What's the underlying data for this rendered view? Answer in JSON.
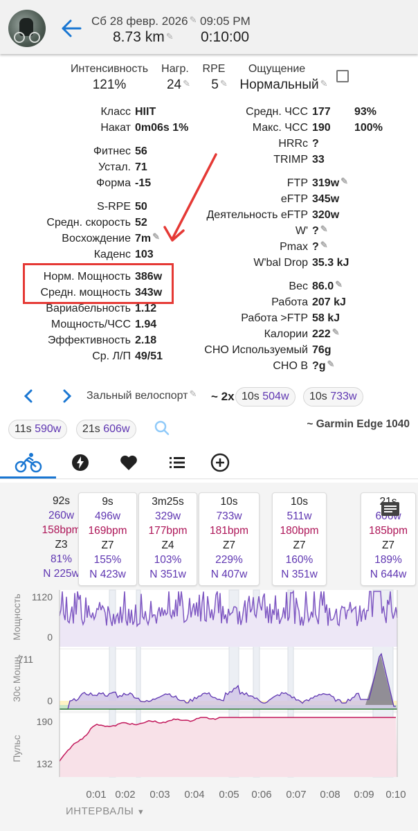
{
  "header": {
    "date": "Сб 28 февр. 2026",
    "time": "09:05 PM",
    "distance": "8.73 km",
    "duration": "0:10:00"
  },
  "top_metrics": [
    {
      "label": "Интенсивность",
      "value": "121%"
    },
    {
      "label": "Нагр.",
      "value": "24"
    },
    {
      "label": "RPE",
      "value": "5"
    },
    {
      "label": "Ощущение",
      "value": "Нормальный"
    }
  ],
  "left_stats": [
    {
      "label": "Класс",
      "value": "HIIT"
    },
    {
      "label": "Накат",
      "value": "0m06s 1%"
    },
    {
      "label": "Фитнес",
      "value": "56"
    },
    {
      "label": "Устал.",
      "value": "71"
    },
    {
      "label": "Форма",
      "value": "-15"
    },
    {
      "label": "S-RPE",
      "value": "50"
    },
    {
      "label": "Средн. скорость",
      "value": "52"
    },
    {
      "label": "Восхождение",
      "value": "7m"
    },
    {
      "label": "Каденс",
      "value": "103"
    },
    {
      "label": "Норм. Мощность",
      "value": "386w"
    },
    {
      "label": "Средн. мощность",
      "value": "343w"
    },
    {
      "label": "Вариабельность",
      "value": "1.12"
    },
    {
      "label": "Мощность/ЧСС",
      "value": "1.94"
    },
    {
      "label": "Эффективность",
      "value": "2.18"
    },
    {
      "label": "Ср. Л/П",
      "value": "49/51"
    }
  ],
  "right_stats": [
    {
      "label": "Средн. ЧСС",
      "value": "177",
      "extra": "93%"
    },
    {
      "label": "Макс. ЧСС",
      "value": "190",
      "extra": "100%"
    },
    {
      "label": "HRRc",
      "value": "?"
    },
    {
      "label": "TRIMP",
      "value": "33"
    },
    {
      "label": "FTP",
      "value": "319w"
    },
    {
      "label": "eFTP",
      "value": "345w"
    },
    {
      "label": "Деятельность eFTP",
      "value": "320w"
    },
    {
      "label": "W'",
      "value": "?"
    },
    {
      "label": "Pmax",
      "value": "?"
    },
    {
      "label": "W'bal Drop",
      "value": "35.3 kJ"
    },
    {
      "label": "Вес",
      "value": "86.0"
    },
    {
      "label": "Работа",
      "value": "207 kJ"
    },
    {
      "label": "Работа >FTP",
      "value": "58 kJ"
    },
    {
      "label": "Калории",
      "value": "222"
    },
    {
      "label": "CHO Используемый",
      "value": "76g"
    },
    {
      "label": "CHO В",
      "value": "?g"
    }
  ],
  "activity": {
    "type": "Зальный велоспорт",
    "multiplier": "~ 2x",
    "device": "~ Garmin Edge 1040"
  },
  "peak_chips": [
    {
      "dur": "10s",
      "watts": "504w"
    },
    {
      "dur": "10s",
      "watts": "733w"
    },
    {
      "dur": "11s",
      "watts": "590w"
    },
    {
      "dur": "21s",
      "watts": "606w"
    }
  ],
  "tabs": [
    {
      "name": "tab-ride",
      "icon": "bike-icon"
    },
    {
      "name": "tab-power",
      "icon": "lightning-icon"
    },
    {
      "name": "tab-heart",
      "icon": "heart-icon"
    },
    {
      "name": "tab-list",
      "icon": "list-icon"
    },
    {
      "name": "tab-add",
      "icon": "plus-circle-icon"
    }
  ],
  "intervals": [
    {
      "dur": "92s",
      "power": "260w",
      "hr": "158bpm",
      "zone": "Z3",
      "pct": "81%",
      "np": "N 225w"
    },
    {
      "dur": "9s",
      "power": "496w",
      "hr": "169bpm",
      "zone": "Z7",
      "pct": "155%",
      "np": "N 423w"
    },
    {
      "dur": "3m25s",
      "power": "329w",
      "hr": "177bpm",
      "zone": "Z4",
      "pct": "103%",
      "np": "N 351w"
    },
    {
      "dur": "10s",
      "power": "733w",
      "hr": "181bpm",
      "zone": "Z7",
      "pct": "229%",
      "np": "N 407w"
    },
    {
      "dur": "10s",
      "power": "511w",
      "hr": "180bpm",
      "zone": "Z7",
      "pct": "160%",
      "np": "N 351w"
    },
    {
      "dur": "21s",
      "power": "606w",
      "hr": "185bpm",
      "zone": "Z7",
      "pct": "189%",
      "np": "N 644w"
    }
  ],
  "charts": {
    "power_label": "Мощность",
    "power_max": "1120",
    "power_min": "0",
    "power30_label": "30с Мощн.",
    "power30_max": "711",
    "power30_min": "0",
    "hr_label": "Пульс",
    "hr_max": "190",
    "hr_min": "132",
    "x_ticks": [
      "0:01",
      "0:02",
      "0:03",
      "0:04",
      "0:05",
      "0:06",
      "0:07",
      "0:08",
      "0:09",
      "0:10"
    ]
  },
  "footer": {
    "intervals_label": "ИНТЕРВАЛЫ"
  },
  "colors": {
    "accent": "#1976d2",
    "power": "#7e57c2",
    "hr": "#c2185b",
    "hr_fill": "#f8e1e8",
    "highlight": "#e53935"
  }
}
